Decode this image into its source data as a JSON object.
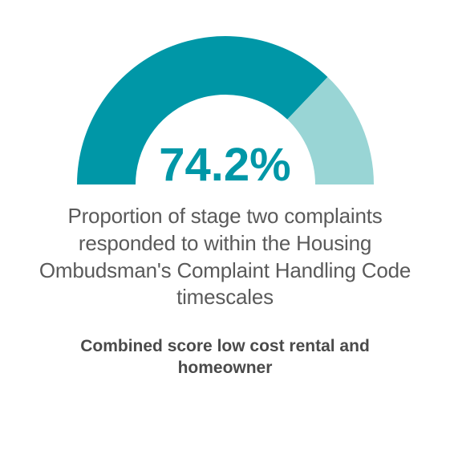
{
  "gauge": {
    "type": "semi-donut",
    "value": 74.2,
    "max": 100,
    "display_value": "74.2%",
    "value_fontsize": 58,
    "value_fontweight": 700,
    "value_color": "#0097a7",
    "outer_radius": 185,
    "inner_radius": 112,
    "filled_color": "#0097a7",
    "remainder_color": "#99d5d5",
    "background_color": "#ffffff",
    "start_angle": 180,
    "end_angle": 0
  },
  "description": {
    "text": "Proportion of stage two complaints responded to within the Housing Ombudsman's Complaint Handling Code timescales",
    "fontsize": 26,
    "fontweight": 300,
    "color": "#5a5a5a"
  },
  "subtitle": {
    "text": "Combined score low cost rental and homeowner",
    "fontsize": 21,
    "fontweight": 700,
    "color": "#4a4a4a"
  }
}
